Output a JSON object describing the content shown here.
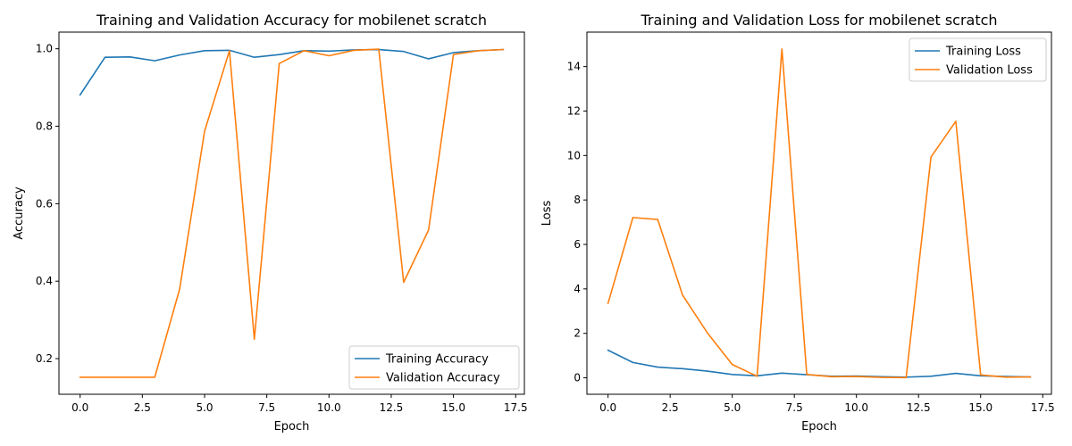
{
  "chart_data": [
    {
      "type": "line",
      "title": "Training and Validation Accuracy for mobilenet scratch",
      "xlabel": "Epoch",
      "ylabel": "Accuracy",
      "xlim": [
        -0.85,
        17.85
      ],
      "ylim": [
        0.108,
        1.043
      ],
      "xticks": [
        0.0,
        2.5,
        5.0,
        7.5,
        10.0,
        12.5,
        15.0,
        17.5
      ],
      "xtick_labels": [
        "0.0",
        "2.5",
        "5.0",
        "7.5",
        "10.0",
        "12.5",
        "15.0",
        "17.5"
      ],
      "yticks": [
        0.2,
        0.4,
        0.6,
        0.8,
        1.0
      ],
      "ytick_labels": [
        "0.2",
        "0.4",
        "0.6",
        "0.8",
        "1.0"
      ],
      "legend_position": "lower-right",
      "x": [
        0,
        1,
        2,
        3,
        4,
        5,
        6,
        7,
        8,
        9,
        10,
        11,
        12,
        13,
        14,
        15,
        16,
        17
      ],
      "series": [
        {
          "name": "Training Accuracy",
          "color": "#1f77b4",
          "values": [
            0.881,
            0.978,
            0.979,
            0.969,
            0.984,
            0.995,
            0.996,
            0.978,
            0.985,
            0.995,
            0.994,
            0.997,
            0.998,
            0.993,
            0.974,
            0.99,
            0.995,
            0.998
          ]
        },
        {
          "name": "Validation Accuracy",
          "color": "#ff7f0e",
          "values": [
            0.152,
            0.152,
            0.152,
            0.152,
            0.38,
            0.787,
            0.995,
            0.25,
            0.962,
            0.995,
            0.982,
            0.996,
            0.999,
            0.397,
            0.532,
            0.985,
            0.995,
            0.998
          ]
        }
      ]
    },
    {
      "type": "line",
      "title": "Training and Validation Loss for mobilenet scratch",
      "xlabel": "Epoch",
      "ylabel": "Loss",
      "xlim": [
        -0.85,
        17.85
      ],
      "ylim": [
        -0.74,
        15.55
      ],
      "xticks": [
        0.0,
        2.5,
        5.0,
        7.5,
        10.0,
        12.5,
        15.0,
        17.5
      ],
      "xtick_labels": [
        "0.0",
        "2.5",
        "5.0",
        "7.5",
        "10.0",
        "12.5",
        "15.0",
        "17.5"
      ],
      "yticks": [
        0,
        2,
        4,
        6,
        8,
        10,
        12,
        14
      ],
      "ytick_labels": [
        "0",
        "2",
        "4",
        "6",
        "8",
        "10",
        "12",
        "14"
      ],
      "legend_position": "upper-right",
      "x": [
        0,
        1,
        2,
        3,
        4,
        5,
        6,
        7,
        8,
        9,
        10,
        11,
        12,
        13,
        14,
        15,
        16,
        17
      ],
      "series": [
        {
          "name": "Training Loss",
          "color": "#1f77b4",
          "values": [
            1.24,
            0.69,
            0.48,
            0.41,
            0.3,
            0.15,
            0.09,
            0.21,
            0.14,
            0.07,
            0.08,
            0.05,
            0.03,
            0.07,
            0.2,
            0.09,
            0.06,
            0.04
          ]
        },
        {
          "name": "Validation Loss",
          "color": "#ff7f0e",
          "values": [
            3.35,
            7.21,
            7.12,
            3.72,
            2.02,
            0.6,
            0.07,
            14.79,
            0.15,
            0.05,
            0.06,
            0.02,
            0.01,
            9.93,
            11.54,
            0.13,
            0.03,
            0.04
          ]
        }
      ]
    }
  ]
}
